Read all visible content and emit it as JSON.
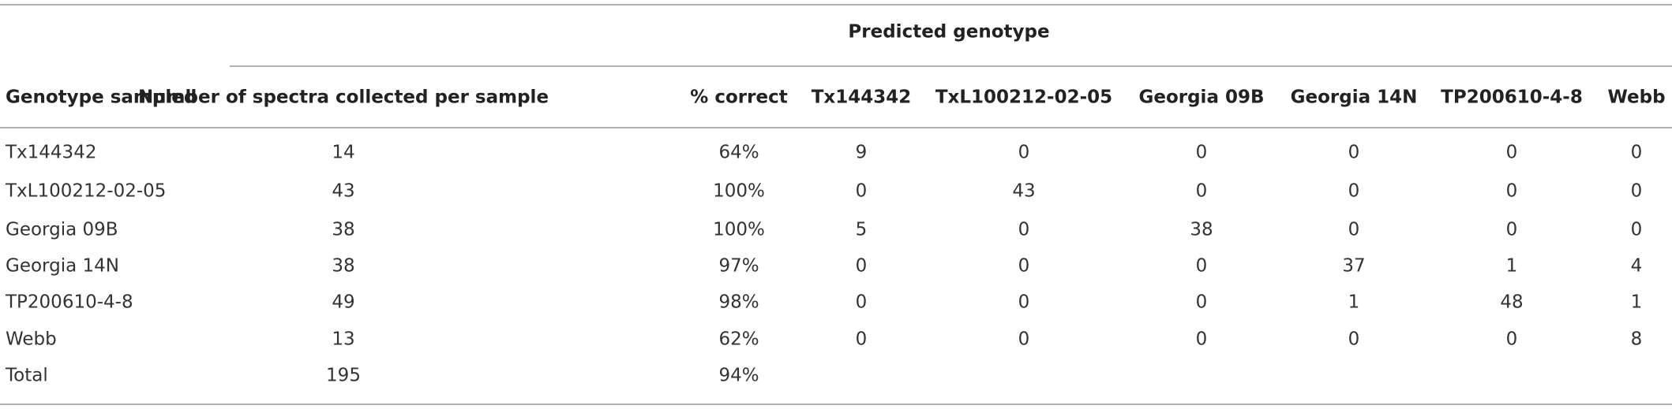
{
  "header": {
    "group": "Predicted genotype",
    "columns": [
      "Genotype sampled",
      "Number of spectra collected per sample",
      "% correct",
      "Tx144342",
      "TxL100212-02-05",
      "Georgia 09B",
      "Georgia 14N",
      "TP200610-4-8",
      "Webb"
    ]
  },
  "table": {
    "rows": [
      [
        "Tx144342",
        "14",
        "64%",
        "9",
        "0",
        "0",
        "0",
        "0",
        "0"
      ],
      [
        "TxL100212-02-05",
        "43",
        "100%",
        "0",
        "43",
        "0",
        "0",
        "0",
        "0"
      ],
      [
        "Georgia 09B",
        "38",
        "100%",
        "5",
        "0",
        "38",
        "0",
        "0",
        "0"
      ],
      [
        "Georgia 14N",
        "38",
        "97%",
        "0",
        "0",
        "0",
        "37",
        "1",
        "4"
      ],
      [
        "TP200610-4-8",
        "49",
        "98%",
        "0",
        "0",
        "0",
        "1",
        "48",
        "1"
      ],
      [
        "Webb",
        "13",
        "62%",
        "0",
        "0",
        "0",
        "0",
        "0",
        "8"
      ],
      [
        "Total",
        "195",
        "94%"
      ]
    ]
  }
}
